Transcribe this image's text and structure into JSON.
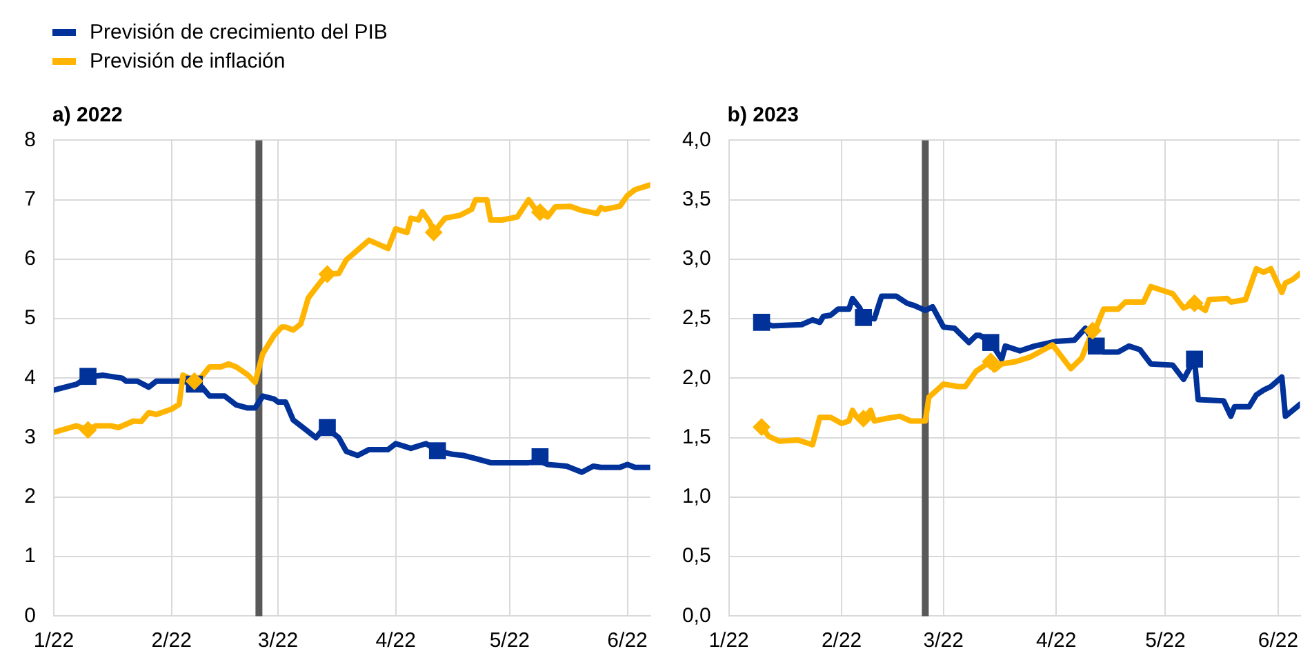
{
  "chart_data": [
    {
      "type": "line",
      "title": "a) 2022",
      "legend": "top left",
      "grid": true,
      "xlim": [
        "2022-01-01",
        "2022-06-07"
      ],
      "xticks": [
        {
          "value": "2022-01-01",
          "label": "1/22"
        },
        {
          "value": "2022-02-01",
          "label": "2/22"
        },
        {
          "value": "2022-03-01",
          "label": "3/22"
        },
        {
          "value": "2022-04-01",
          "label": "4/22"
        },
        {
          "value": "2022-05-01",
          "label": "5/22"
        },
        {
          "value": "2022-06-01",
          "label": "6/22"
        }
      ],
      "ylim": [
        0,
        8
      ],
      "yticks": [
        0,
        1,
        2,
        3,
        4,
        5,
        6,
        7,
        8
      ],
      "ref_lines": [
        {
          "axis": "x",
          "value": "2022-02-24",
          "color": "#595959"
        }
      ],
      "series": [
        {
          "type": "line",
          "name": "Previsión de crecimiento del PIB",
          "color": "#003299",
          "marker": "none",
          "x": [
            "2022-01-01",
            "2022-01-07",
            "2022-01-10",
            "2022-01-14",
            "2022-01-19",
            "2022-01-20",
            "2022-01-23",
            "2022-01-26",
            "2022-01-28",
            "2022-02-04",
            "2022-02-07",
            "2022-02-09",
            "2022-02-11",
            "2022-02-15",
            "2022-02-18",
            "2022-02-21",
            "2022-02-23",
            "2022-02-25",
            "2022-02-28",
            "2022-03-01",
            "2022-03-03",
            "2022-03-05",
            "2022-03-08",
            "2022-03-11",
            "2022-03-13",
            "2022-03-14",
            "2022-03-17",
            "2022-03-19",
            "2022-03-22",
            "2022-03-25",
            "2022-03-30",
            "2022-04-01",
            "2022-04-05",
            "2022-04-09",
            "2022-04-12",
            "2022-04-16",
            "2022-04-19",
            "2022-04-22",
            "2022-04-26",
            "2022-05-06",
            "2022-05-09",
            "2022-05-11",
            "2022-05-16",
            "2022-05-20",
            "2022-05-23",
            "2022-05-25",
            "2022-05-30",
            "2022-06-01",
            "2022-06-03",
            "2022-06-07"
          ],
          "values": [
            3.8,
            3.9,
            4.02,
            4.05,
            4.0,
            3.95,
            3.95,
            3.85,
            3.95,
            3.95,
            3.9,
            3.85,
            3.7,
            3.7,
            3.55,
            3.5,
            3.5,
            3.7,
            3.65,
            3.6,
            3.6,
            3.3,
            3.15,
            3.0,
            3.15,
            3.15,
            3.0,
            2.77,
            2.7,
            2.8,
            2.8,
            2.9,
            2.82,
            2.9,
            2.78,
            2.72,
            2.7,
            2.65,
            2.58,
            2.58,
            2.6,
            2.55,
            2.52,
            2.42,
            2.52,
            2.5,
            2.5,
            2.55,
            2.5,
            2.5
          ]
        },
        {
          "type": "line",
          "name": "Previsión de inflación",
          "color": "#ffb400",
          "marker": "none",
          "x": [
            "2022-01-01",
            "2022-01-07",
            "2022-01-10",
            "2022-01-12",
            "2022-01-16",
            "2022-01-18",
            "2022-01-22",
            "2022-01-24",
            "2022-01-26",
            "2022-01-28",
            "2022-02-01",
            "2022-02-03",
            "2022-02-04",
            "2022-02-05",
            "2022-02-07",
            "2022-02-09",
            "2022-02-11",
            "2022-02-14",
            "2022-02-16",
            "2022-02-18",
            "2022-02-21",
            "2022-02-23",
            "2022-02-25",
            "2022-02-28",
            "2022-03-02",
            "2022-03-03",
            "2022-03-05",
            "2022-03-07",
            "2022-03-09",
            "2022-03-12",
            "2022-03-14",
            "2022-03-17",
            "2022-03-19",
            "2022-03-25",
            "2022-03-30",
            "2022-04-01",
            "2022-04-04",
            "2022-04-05",
            "2022-04-07",
            "2022-04-08",
            "2022-04-10",
            "2022-04-11",
            "2022-04-14",
            "2022-04-18",
            "2022-04-21",
            "2022-04-22",
            "2022-04-25",
            "2022-04-26",
            "2022-04-29",
            "2022-05-03",
            "2022-05-06",
            "2022-05-08",
            "2022-05-09",
            "2022-05-11",
            "2022-05-13",
            "2022-05-17",
            "2022-05-20",
            "2022-05-24",
            "2022-05-25",
            "2022-05-26",
            "2022-05-30",
            "2022-06-01",
            "2022-06-03",
            "2022-06-07"
          ],
          "values": [
            3.09,
            3.2,
            3.13,
            3.2,
            3.2,
            3.17,
            3.28,
            3.27,
            3.42,
            3.39,
            3.48,
            3.56,
            4.05,
            4.02,
            3.95,
            4.03,
            4.19,
            4.19,
            4.24,
            4.19,
            4.06,
            3.93,
            4.41,
            4.72,
            4.86,
            4.86,
            4.81,
            4.91,
            5.35,
            5.6,
            5.75,
            5.76,
            5.99,
            6.32,
            6.18,
            6.51,
            6.45,
            6.69,
            6.66,
            6.8,
            6.62,
            6.45,
            6.69,
            6.74,
            6.84,
            7.0,
            7.0,
            6.66,
            6.66,
            6.71,
            7.0,
            6.82,
            6.79,
            6.71,
            6.88,
            6.89,
            6.82,
            6.77,
            6.87,
            6.84,
            6.89,
            7.07,
            7.17,
            7.25
          ]
        },
        {
          "type": "scatter",
          "color": "#003299",
          "marker": "square",
          "x": [
            "2022-01-10",
            "2022-02-07",
            "2022-03-14",
            "2022-04-12",
            "2022-05-09"
          ],
          "values": [
            4.03,
            3.9,
            3.17,
            2.78,
            2.68
          ]
        },
        {
          "type": "scatter",
          "color": "#ffb400",
          "marker": "diamond",
          "x": [
            "2022-01-10",
            "2022-02-07",
            "2022-03-14",
            "2022-04-11",
            "2022-05-09"
          ],
          "values": [
            3.13,
            3.95,
            5.75,
            6.45,
            6.79
          ]
        }
      ]
    },
    {
      "type": "line",
      "title": "b) 2023",
      "grid": true,
      "xlim": [
        "2022-01-01",
        "2022-06-07"
      ],
      "xticks": [
        {
          "value": "2022-01-01",
          "label": "1/22"
        },
        {
          "value": "2022-02-01",
          "label": "2/22"
        },
        {
          "value": "2022-03-01",
          "label": "3/22"
        },
        {
          "value": "2022-04-01",
          "label": "4/22"
        },
        {
          "value": "2022-05-01",
          "label": "5/22"
        },
        {
          "value": "2022-06-01",
          "label": "6/22"
        }
      ],
      "ylim": [
        0,
        4
      ],
      "yticks": [
        {
          "value": 0,
          "label": "0,0"
        },
        {
          "value": 0.5,
          "label": "0,5"
        },
        {
          "value": 1,
          "label": "1,0"
        },
        {
          "value": 1.5,
          "label": "1,5"
        },
        {
          "value": 2,
          "label": "2,0"
        },
        {
          "value": 2.5,
          "label": "2,5"
        },
        {
          "value": 3,
          "label": "3,0"
        },
        {
          "value": 3.5,
          "label": "3,5"
        },
        {
          "value": 4,
          "label": "4,0"
        }
      ],
      "ref_lines": [
        {
          "axis": "x",
          "value": "2022-02-24",
          "color": "#595959"
        }
      ],
      "series": [
        {
          "type": "line",
          "color": "#003299",
          "marker": "none",
          "x": [
            "2022-01-10",
            "2022-01-13",
            "2022-01-21",
            "2022-01-24",
            "2022-01-26",
            "2022-01-27",
            "2022-01-29",
            "2022-01-31",
            "2022-02-03",
            "2022-02-04",
            "2022-02-06",
            "2022-02-07",
            "2022-02-10",
            "2022-02-12",
            "2022-02-16",
            "2022-02-19",
            "2022-02-21",
            "2022-02-24",
            "2022-02-26",
            "2022-03-01",
            "2022-03-04",
            "2022-03-08",
            "2022-03-10",
            "2022-03-11",
            "2022-03-14",
            "2022-03-17",
            "2022-03-18",
            "2022-03-22",
            "2022-03-26",
            "2022-04-01",
            "2022-04-06",
            "2022-04-09",
            "2022-04-12",
            "2022-04-14",
            "2022-04-18",
            "2022-04-21",
            "2022-04-24",
            "2022-04-27",
            "2022-05-03",
            "2022-05-06",
            "2022-05-09",
            "2022-05-10",
            "2022-05-17",
            "2022-05-19",
            "2022-05-20",
            "2022-05-24",
            "2022-05-26",
            "2022-05-28",
            "2022-05-30",
            "2022-06-02",
            "2022-06-03",
            "2022-06-07"
          ],
          "values": [
            2.47,
            2.44,
            2.45,
            2.49,
            2.47,
            2.52,
            2.53,
            2.58,
            2.58,
            2.67,
            2.59,
            2.51,
            2.5,
            2.69,
            2.69,
            2.63,
            2.61,
            2.57,
            2.6,
            2.43,
            2.42,
            2.3,
            2.36,
            2.36,
            2.3,
            2.16,
            2.27,
            2.23,
            2.27,
            2.31,
            2.32,
            2.42,
            2.27,
            2.22,
            2.22,
            2.27,
            2.24,
            2.12,
            2.11,
            1.99,
            2.16,
            1.82,
            1.81,
            1.68,
            1.76,
            1.76,
            1.86,
            1.9,
            1.93,
            2.01,
            1.68,
            1.78
          ]
        },
        {
          "type": "line",
          "color": "#ffb400",
          "marker": "none",
          "x": [
            "2022-01-10",
            "2022-01-12",
            "2022-01-15",
            "2022-01-20",
            "2022-01-22",
            "2022-01-24",
            "2022-01-26",
            "2022-01-29",
            "2022-02-01",
            "2022-02-03",
            "2022-02-04",
            "2022-02-05",
            "2022-02-07",
            "2022-02-09",
            "2022-02-10",
            "2022-02-13",
            "2022-02-17",
            "2022-02-20",
            "2022-02-24",
            "2022-02-25",
            "2022-03-01",
            "2022-03-05",
            "2022-03-07",
            "2022-03-10",
            "2022-03-12",
            "2022-03-14",
            "2022-03-15",
            "2022-03-17",
            "2022-03-21",
            "2022-03-25",
            "2022-03-31",
            "2022-04-02",
            "2022-04-05",
            "2022-04-08",
            "2022-04-11",
            "2022-04-12",
            "2022-04-14",
            "2022-04-18",
            "2022-04-20",
            "2022-04-25",
            "2022-04-27",
            "2022-04-30",
            "2022-05-03",
            "2022-05-06",
            "2022-05-09",
            "2022-05-12",
            "2022-05-13",
            "2022-05-18",
            "2022-05-19",
            "2022-05-23",
            "2022-05-26",
            "2022-05-28",
            "2022-05-30",
            "2022-06-02",
            "2022-06-03",
            "2022-06-05",
            "2022-06-07"
          ],
          "values": [
            1.59,
            1.51,
            1.47,
            1.48,
            1.46,
            1.44,
            1.67,
            1.67,
            1.62,
            1.64,
            1.73,
            1.68,
            1.66,
            1.73,
            1.64,
            1.66,
            1.68,
            1.64,
            1.64,
            1.84,
            1.95,
            1.93,
            1.93,
            2.06,
            2.1,
            2.14,
            2.07,
            2.12,
            2.14,
            2.18,
            2.28,
            2.2,
            2.08,
            2.17,
            2.4,
            2.43,
            2.58,
            2.58,
            2.64,
            2.64,
            2.77,
            2.74,
            2.71,
            2.59,
            2.63,
            2.57,
            2.66,
            2.67,
            2.64,
            2.66,
            2.92,
            2.89,
            2.92,
            2.72,
            2.8,
            2.83,
            2.88
          ]
        },
        {
          "type": "scatter",
          "color": "#003299",
          "marker": "square",
          "x": [
            "2022-01-10",
            "2022-02-07",
            "2022-03-14",
            "2022-04-12",
            "2022-05-09"
          ],
          "values": [
            2.47,
            2.51,
            2.3,
            2.27,
            2.16
          ]
        },
        {
          "type": "scatter",
          "color": "#ffb400",
          "marker": "diamond",
          "x": [
            "2022-01-10",
            "2022-02-07",
            "2022-03-14",
            "2022-04-11",
            "2022-05-09"
          ],
          "values": [
            1.59,
            1.66,
            2.14,
            2.4,
            2.63
          ]
        }
      ]
    }
  ]
}
